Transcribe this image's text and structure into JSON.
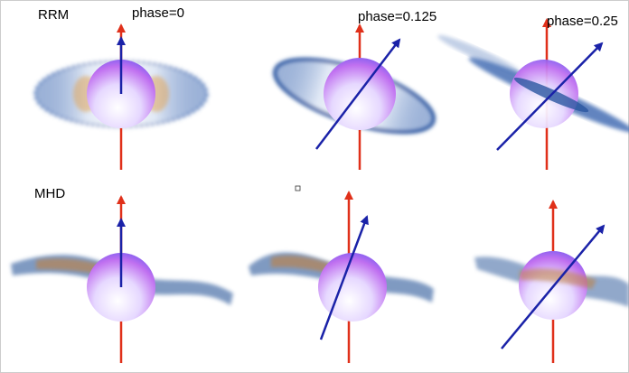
{
  "rows": [
    {
      "label": "RRM"
    },
    {
      "label": "MHD"
    }
  ],
  "columns": [
    {
      "label": "phase=0"
    },
    {
      "label": "phase=0.125"
    },
    {
      "label": "phase=0.25"
    }
  ]
}
